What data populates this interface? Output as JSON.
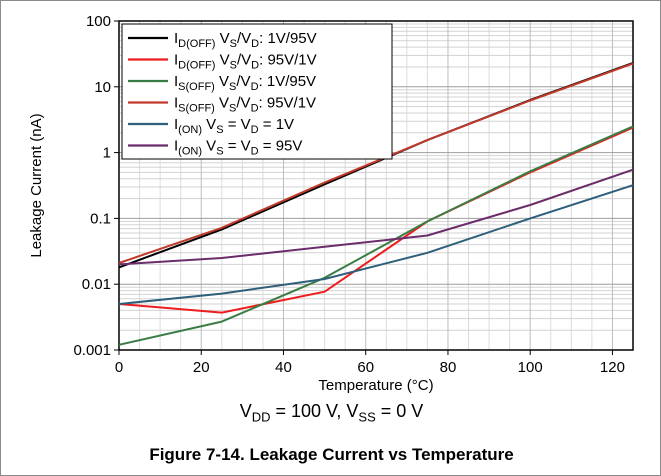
{
  "chart_data": {
    "type": "line",
    "title": "",
    "xlabel": "Temperature (°C)",
    "ylabel": "Leakage Current (nA)",
    "xlim": [
      0,
      125
    ],
    "ylim": [
      0.001,
      100
    ],
    "yscale": "log",
    "grid": true,
    "legend_position": "top-left",
    "x_ticks": [
      0,
      20,
      40,
      60,
      80,
      100,
      120
    ],
    "x_tick_labels": [
      "0",
      "20",
      "40",
      "60",
      "80",
      "100",
      "120"
    ],
    "y_ticks": [
      0.001,
      0.01,
      0.1,
      1,
      10,
      100
    ],
    "y_tick_labels": [
      "0.001",
      "0.01",
      "0.1",
      "1",
      "10",
      "100"
    ],
    "series": [
      {
        "name": "I(D(OFF)) VS/VD: 1V/95V",
        "legend": {
          "main": "I",
          "sub": "D(OFF)",
          "rest": " V",
          "sub2": "S",
          "mid": "/V",
          "sub3": "D",
          "tail": ": 1V/95V"
        },
        "color": "#000000",
        "x": [
          0,
          25,
          50,
          75,
          100,
          125
        ],
        "y": [
          0.018,
          0.068,
          0.33,
          1.55,
          6.3,
          23
        ]
      },
      {
        "name": "I(D(OFF)) VS/VD: 95V/1V",
        "legend": {
          "main": "I",
          "sub": "D(OFF)",
          "rest": " V",
          "sub2": "S",
          "mid": "/V",
          "sub3": "D",
          "tail": ": 95V/1V"
        },
        "color": "#ee1c1c",
        "x": [
          0,
          25,
          50,
          75,
          100,
          125
        ],
        "y": [
          0.005,
          0.0037,
          0.0077,
          0.09,
          0.5,
          2.4
        ]
      },
      {
        "name": "I(S(OFF)) VS/VD: 1V/95V",
        "legend": {
          "main": "I",
          "sub": "S(OFF)",
          "rest": " V",
          "sub2": "S",
          "mid": "/V",
          "sub3": "D",
          "tail": ": 1V/95V"
        },
        "color": "#3a7d44",
        "x": [
          0,
          25,
          50,
          75,
          100,
          125
        ],
        "y": [
          0.0012,
          0.0027,
          0.0125,
          0.09,
          0.52,
          2.5
        ]
      },
      {
        "name": "I(S(OFF)) VS/VD: 95V/1V",
        "legend": {
          "main": "I",
          "sub": "S(OFF)",
          "rest": " V",
          "sub2": "S",
          "mid": "/V",
          "sub3": "D",
          "tail": ": 95V/1V"
        },
        "color": "#c0392b",
        "x": [
          0,
          25,
          50,
          75,
          100,
          125
        ],
        "y": [
          0.021,
          0.072,
          0.35,
          1.55,
          6.2,
          22.5
        ]
      },
      {
        "name": "I(ON) VS = VD = 1V",
        "legend": {
          "main": "I",
          "sub": "(ON)",
          "rest": " V",
          "sub2": "S",
          "mid": " = V",
          "sub3": "D",
          "tail": " = 1V"
        },
        "color": "#2e5f7a",
        "x": [
          0,
          25,
          50,
          75,
          100,
          125
        ],
        "y": [
          0.005,
          0.0072,
          0.012,
          0.03,
          0.1,
          0.32
        ]
      },
      {
        "name": "I(ON) VS = VD = 95V",
        "legend": {
          "main": "I",
          "sub": "(ON)",
          "rest": " V",
          "sub2": "S",
          "mid": " = V",
          "sub3": "D",
          "tail": " = 95V"
        },
        "color": "#6b2c6b",
        "x": [
          0,
          25,
          50,
          75,
          100,
          125
        ],
        "y": [
          0.02,
          0.025,
          0.037,
          0.055,
          0.16,
          0.55
        ]
      }
    ]
  },
  "conditions": {
    "v1": "V",
    "v1_sub": "DD",
    "v1_val": " = 100 V, ",
    "v2": "V",
    "v2_sub": "SS",
    "v2_val": " = 0 V"
  },
  "caption": "Figure 7-14. Leakage Current vs Temperature"
}
